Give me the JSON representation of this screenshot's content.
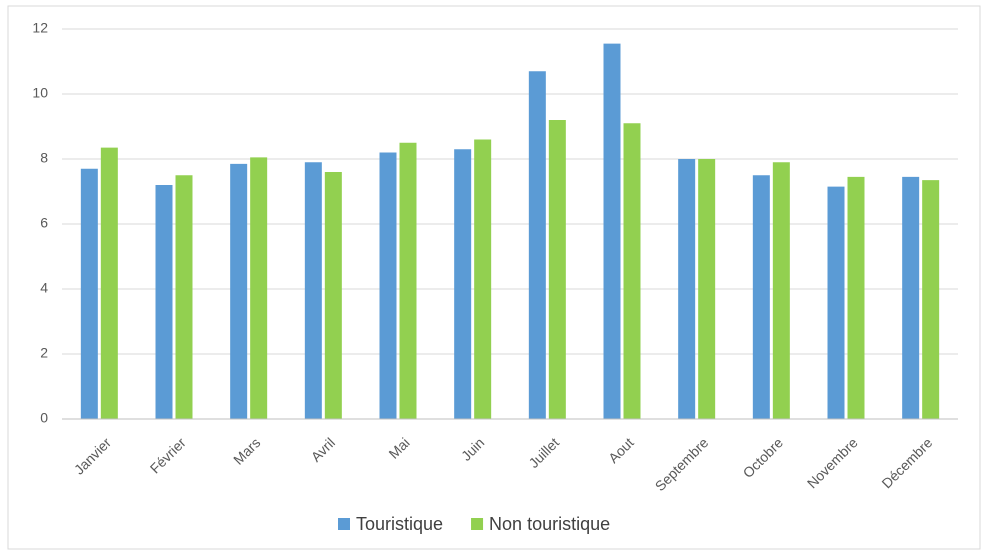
{
  "chart_data": {
    "type": "bar",
    "categories": [
      "Janvier",
      "Février",
      "Mars",
      "Avril",
      "Mai",
      "Juin",
      "Juillet",
      "Aout",
      "Septembre",
      "Octobre",
      "Novembre",
      "Décembre"
    ],
    "series": [
      {
        "name": "Touristique",
        "color": "#5b9bd5",
        "values": [
          7.7,
          7.2,
          7.85,
          7.9,
          8.2,
          8.3,
          10.7,
          11.55,
          8.0,
          7.5,
          7.15,
          7.45
        ]
      },
      {
        "name": "Non touristique",
        "color": "#92d050",
        "values": [
          8.35,
          7.5,
          8.05,
          7.6,
          8.5,
          8.6,
          9.2,
          9.1,
          8.0,
          7.9,
          7.45,
          7.35
        ]
      }
    ],
    "ylim": [
      0,
      12
    ],
    "yticks": [
      0,
      2,
      4,
      6,
      8,
      10,
      12
    ],
    "grid": true,
    "legend": "bottom"
  }
}
